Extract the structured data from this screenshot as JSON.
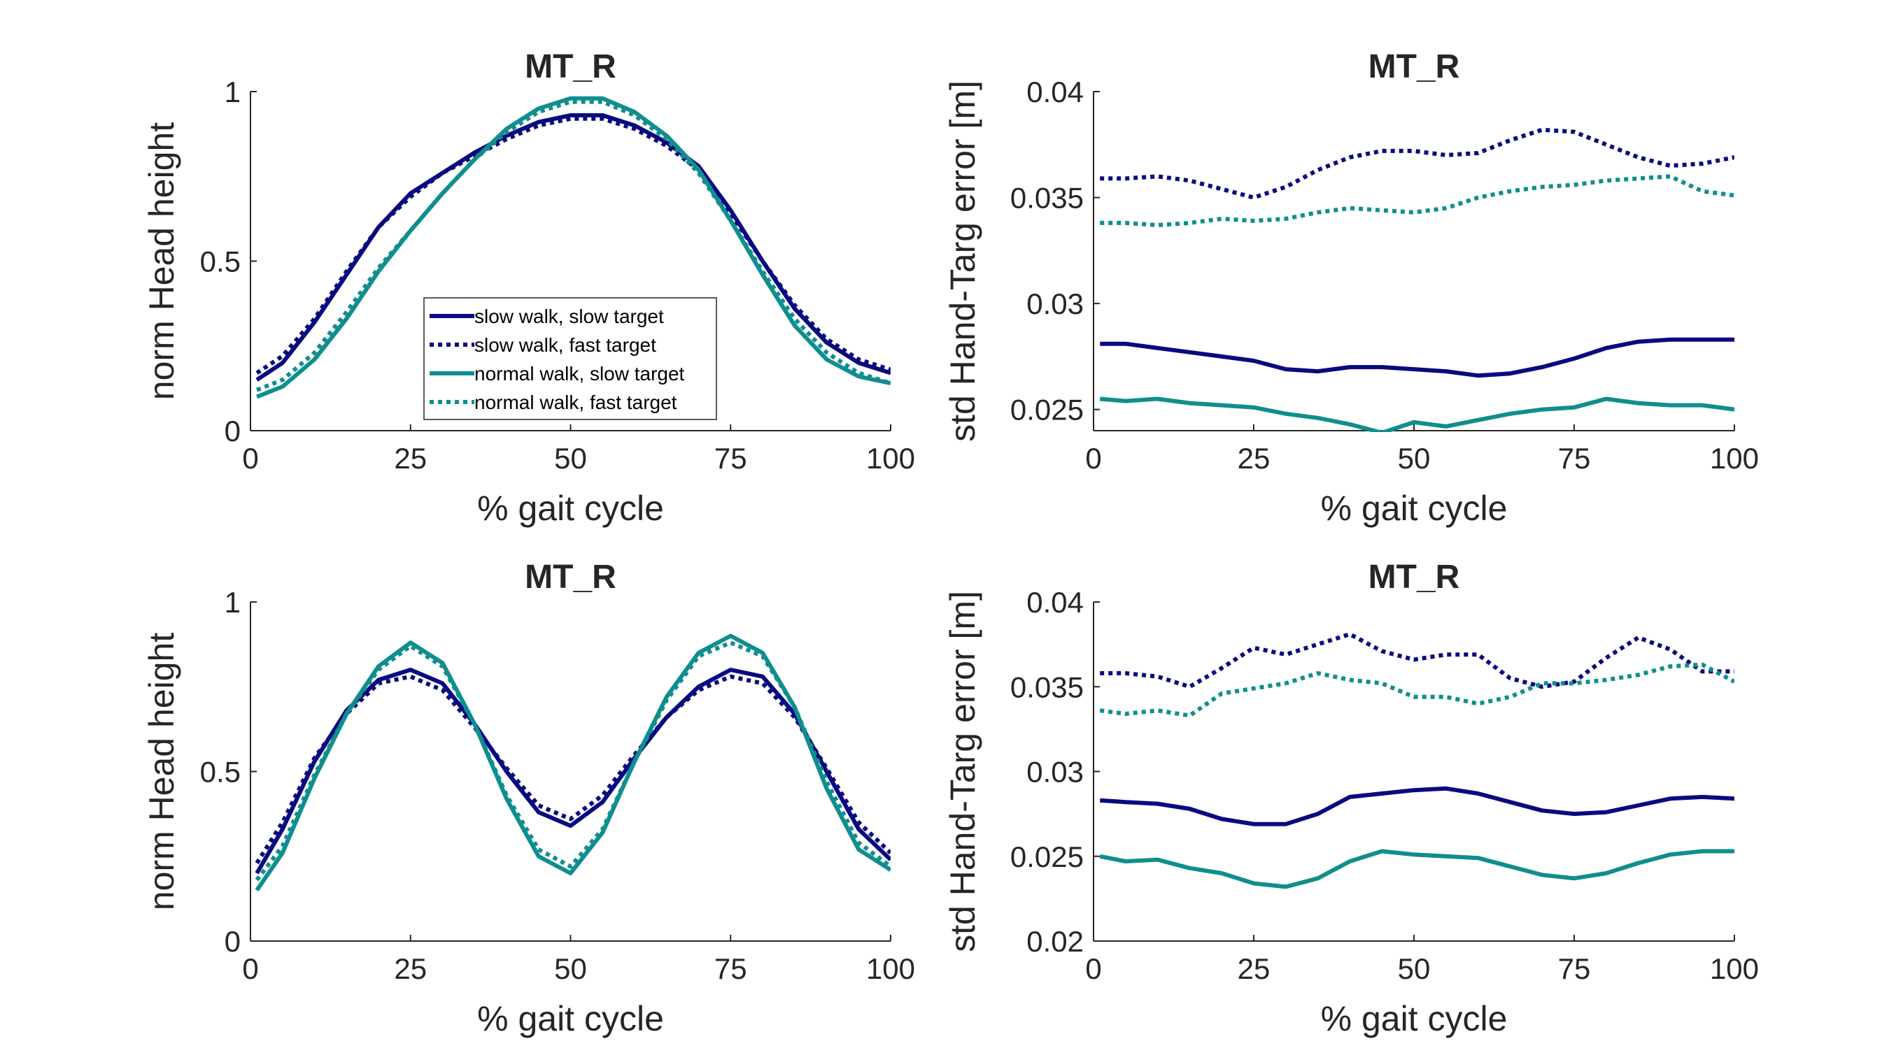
{
  "colors": {
    "slow": "#0a0a80",
    "normal": "#108e8e",
    "axis": "#262626"
  },
  "chart_data": [
    {
      "type": "line",
      "title": "MT_R",
      "xlabel": "% gait cycle",
      "ylabel": "norm Head height",
      "xlim": [
        0,
        100
      ],
      "ylim": [
        0,
        1
      ],
      "xticks": [
        "0",
        "25",
        "50",
        "75",
        "100"
      ],
      "yticks": [
        "0",
        "0.5",
        "1"
      ],
      "grid": false,
      "legend": {
        "placement": "center-left",
        "entries": [
          "slow walk, slow target",
          "slow walk, fast target",
          "normal walk, slow target",
          "normal walk, fast target"
        ]
      },
      "x": [
        1,
        5,
        10,
        15,
        20,
        25,
        30,
        35,
        40,
        45,
        50,
        55,
        60,
        65,
        70,
        75,
        80,
        85,
        90,
        95,
        100
      ],
      "series": [
        {
          "name": "slow walk, slow target",
          "style": "solid",
          "color": "#0a0a80",
          "values": [
            0.15,
            0.2,
            0.32,
            0.46,
            0.6,
            0.7,
            0.76,
            0.82,
            0.87,
            0.91,
            0.93,
            0.93,
            0.9,
            0.85,
            0.78,
            0.65,
            0.5,
            0.36,
            0.26,
            0.2,
            0.17
          ]
        },
        {
          "name": "slow walk, fast target",
          "style": "dotted",
          "color": "#0a0a80",
          "values": [
            0.17,
            0.22,
            0.33,
            0.47,
            0.6,
            0.69,
            0.76,
            0.81,
            0.86,
            0.9,
            0.92,
            0.92,
            0.89,
            0.84,
            0.77,
            0.64,
            0.5,
            0.37,
            0.27,
            0.21,
            0.18
          ]
        },
        {
          "name": "normal walk, slow target",
          "style": "solid",
          "color": "#108e8e",
          "values": [
            0.1,
            0.13,
            0.21,
            0.33,
            0.47,
            0.59,
            0.7,
            0.8,
            0.89,
            0.95,
            0.98,
            0.98,
            0.94,
            0.87,
            0.77,
            0.62,
            0.46,
            0.31,
            0.21,
            0.16,
            0.14
          ]
        },
        {
          "name": "normal walk, fast target",
          "style": "dotted",
          "color": "#108e8e",
          "values": [
            0.12,
            0.15,
            0.23,
            0.35,
            0.48,
            0.59,
            0.7,
            0.8,
            0.88,
            0.94,
            0.97,
            0.97,
            0.93,
            0.86,
            0.76,
            0.62,
            0.47,
            0.33,
            0.23,
            0.17,
            0.14
          ]
        }
      ]
    },
    {
      "type": "line",
      "title": "MT_R",
      "xlabel": "% gait cycle",
      "ylabel": "std Hand-Targ error [m]",
      "xlim": [
        0,
        100
      ],
      "ylim": [
        0.024,
        0.04
      ],
      "xticks": [
        "0",
        "25",
        "50",
        "75",
        "100"
      ],
      "yticks": [
        "0.025",
        "0.03",
        "0.035",
        "0.04"
      ],
      "ytick_values": [
        0.025,
        0.03,
        0.035,
        0.04
      ],
      "grid": false,
      "x": [
        1,
        5,
        10,
        15,
        20,
        25,
        30,
        35,
        40,
        45,
        50,
        55,
        60,
        65,
        70,
        75,
        80,
        85,
        90,
        95,
        100
      ],
      "series": [
        {
          "name": "slow walk, slow target",
          "style": "solid",
          "color": "#0a0a80",
          "values": [
            0.0281,
            0.0281,
            0.0279,
            0.0277,
            0.0275,
            0.0273,
            0.0269,
            0.0268,
            0.027,
            0.027,
            0.0269,
            0.0268,
            0.0266,
            0.0267,
            0.027,
            0.0274,
            0.0279,
            0.0282,
            0.0283,
            0.0283,
            0.0283
          ]
        },
        {
          "name": "slow walk, fast target",
          "style": "dotted",
          "color": "#0a0a80",
          "values": [
            0.0359,
            0.0359,
            0.036,
            0.0358,
            0.0354,
            0.035,
            0.0355,
            0.0363,
            0.0369,
            0.0372,
            0.0372,
            0.037,
            0.0371,
            0.0377,
            0.0382,
            0.0381,
            0.0375,
            0.0369,
            0.0365,
            0.0366,
            0.0369
          ]
        },
        {
          "name": "normal walk, slow target",
          "style": "solid",
          "color": "#108e8e",
          "values": [
            0.0255,
            0.0254,
            0.0255,
            0.0253,
            0.0252,
            0.0251,
            0.0248,
            0.0246,
            0.0243,
            0.0239,
            0.0244,
            0.0242,
            0.0245,
            0.0248,
            0.025,
            0.0251,
            0.0255,
            0.0253,
            0.0252,
            0.0252,
            0.025
          ]
        },
        {
          "name": "normal walk, fast target",
          "style": "dotted",
          "color": "#108e8e",
          "values": [
            0.0338,
            0.0338,
            0.0337,
            0.0338,
            0.034,
            0.0339,
            0.034,
            0.0343,
            0.0345,
            0.0344,
            0.0343,
            0.0345,
            0.035,
            0.0353,
            0.0355,
            0.0356,
            0.0358,
            0.0359,
            0.036,
            0.0353,
            0.0351
          ]
        }
      ]
    },
    {
      "type": "line",
      "title": "MT_R",
      "xlabel": "% gait cycle",
      "ylabel": "norm Head height",
      "xlim": [
        0,
        100
      ],
      "ylim": [
        0,
        1
      ],
      "xticks": [
        "0",
        "25",
        "50",
        "75",
        "100"
      ],
      "yticks": [
        "0",
        "0.5",
        "1"
      ],
      "grid": false,
      "x": [
        1,
        5,
        10,
        15,
        20,
        25,
        30,
        35,
        40,
        45,
        50,
        55,
        60,
        65,
        70,
        75,
        80,
        85,
        90,
        95,
        100
      ],
      "series": [
        {
          "name": "slow walk, slow target",
          "style": "solid",
          "color": "#0a0a80",
          "values": [
            0.2,
            0.33,
            0.53,
            0.68,
            0.77,
            0.8,
            0.76,
            0.64,
            0.5,
            0.38,
            0.34,
            0.41,
            0.54,
            0.66,
            0.75,
            0.8,
            0.78,
            0.67,
            0.5,
            0.33,
            0.24
          ]
        },
        {
          "name": "slow walk, fast target",
          "style": "dotted",
          "color": "#0a0a80",
          "values": [
            0.23,
            0.35,
            0.54,
            0.67,
            0.76,
            0.78,
            0.74,
            0.63,
            0.51,
            0.4,
            0.36,
            0.43,
            0.55,
            0.66,
            0.74,
            0.78,
            0.76,
            0.66,
            0.51,
            0.35,
            0.26
          ]
        },
        {
          "name": "normal walk, slow target",
          "style": "solid",
          "color": "#108e8e",
          "values": [
            0.15,
            0.26,
            0.48,
            0.67,
            0.81,
            0.88,
            0.82,
            0.64,
            0.42,
            0.25,
            0.2,
            0.32,
            0.53,
            0.72,
            0.85,
            0.9,
            0.85,
            0.69,
            0.45,
            0.27,
            0.21
          ]
        },
        {
          "name": "normal walk, fast target",
          "style": "dotted",
          "color": "#108e8e",
          "values": [
            0.18,
            0.28,
            0.49,
            0.67,
            0.8,
            0.87,
            0.81,
            0.64,
            0.43,
            0.27,
            0.22,
            0.33,
            0.53,
            0.71,
            0.84,
            0.88,
            0.84,
            0.69,
            0.47,
            0.29,
            0.22
          ]
        }
      ]
    },
    {
      "type": "line",
      "title": "MT_R",
      "xlabel": "% gait cycle",
      "ylabel": "std Hand-Targ error [m]",
      "xlim": [
        0,
        100
      ],
      "ylim": [
        0.02,
        0.04
      ],
      "xticks": [
        "0",
        "25",
        "50",
        "75",
        "100"
      ],
      "yticks": [
        "0.02",
        "0.025",
        "0.03",
        "0.035",
        "0.04"
      ],
      "ytick_values": [
        0.02,
        0.025,
        0.03,
        0.035,
        0.04
      ],
      "grid": false,
      "x": [
        1,
        5,
        10,
        15,
        20,
        25,
        30,
        35,
        40,
        45,
        50,
        55,
        60,
        65,
        70,
        75,
        80,
        85,
        90,
        95,
        100
      ],
      "series": [
        {
          "name": "slow walk, slow target",
          "style": "solid",
          "color": "#0a0a80",
          "values": [
            0.0283,
            0.0282,
            0.0281,
            0.0278,
            0.0272,
            0.0269,
            0.0269,
            0.0275,
            0.0285,
            0.0287,
            0.0289,
            0.029,
            0.0287,
            0.0282,
            0.0277,
            0.0275,
            0.0276,
            0.028,
            0.0284,
            0.0285,
            0.0284
          ]
        },
        {
          "name": "slow walk, fast target",
          "style": "dotted",
          "color": "#0a0a80",
          "values": [
            0.0358,
            0.0358,
            0.0356,
            0.035,
            0.0361,
            0.0373,
            0.0369,
            0.0375,
            0.0381,
            0.0371,
            0.0366,
            0.0369,
            0.0369,
            0.0355,
            0.035,
            0.0353,
            0.0367,
            0.0379,
            0.0372,
            0.0359,
            0.0359
          ]
        },
        {
          "name": "normal walk, slow target",
          "style": "solid",
          "color": "#108e8e",
          "values": [
            0.025,
            0.0247,
            0.0248,
            0.0243,
            0.024,
            0.0234,
            0.0232,
            0.0237,
            0.0247,
            0.0253,
            0.0251,
            0.025,
            0.0249,
            0.0244,
            0.0239,
            0.0237,
            0.024,
            0.0246,
            0.0251,
            0.0253,
            0.0253
          ]
        },
        {
          "name": "normal walk, fast target",
          "style": "dotted",
          "color": "#108e8e",
          "values": [
            0.0336,
            0.0334,
            0.0336,
            0.0333,
            0.0346,
            0.0349,
            0.0352,
            0.0358,
            0.0354,
            0.0352,
            0.0344,
            0.0344,
            0.034,
            0.0344,
            0.0352,
            0.0352,
            0.0354,
            0.0357,
            0.0362,
            0.0363,
            0.0353
          ]
        }
      ]
    }
  ]
}
